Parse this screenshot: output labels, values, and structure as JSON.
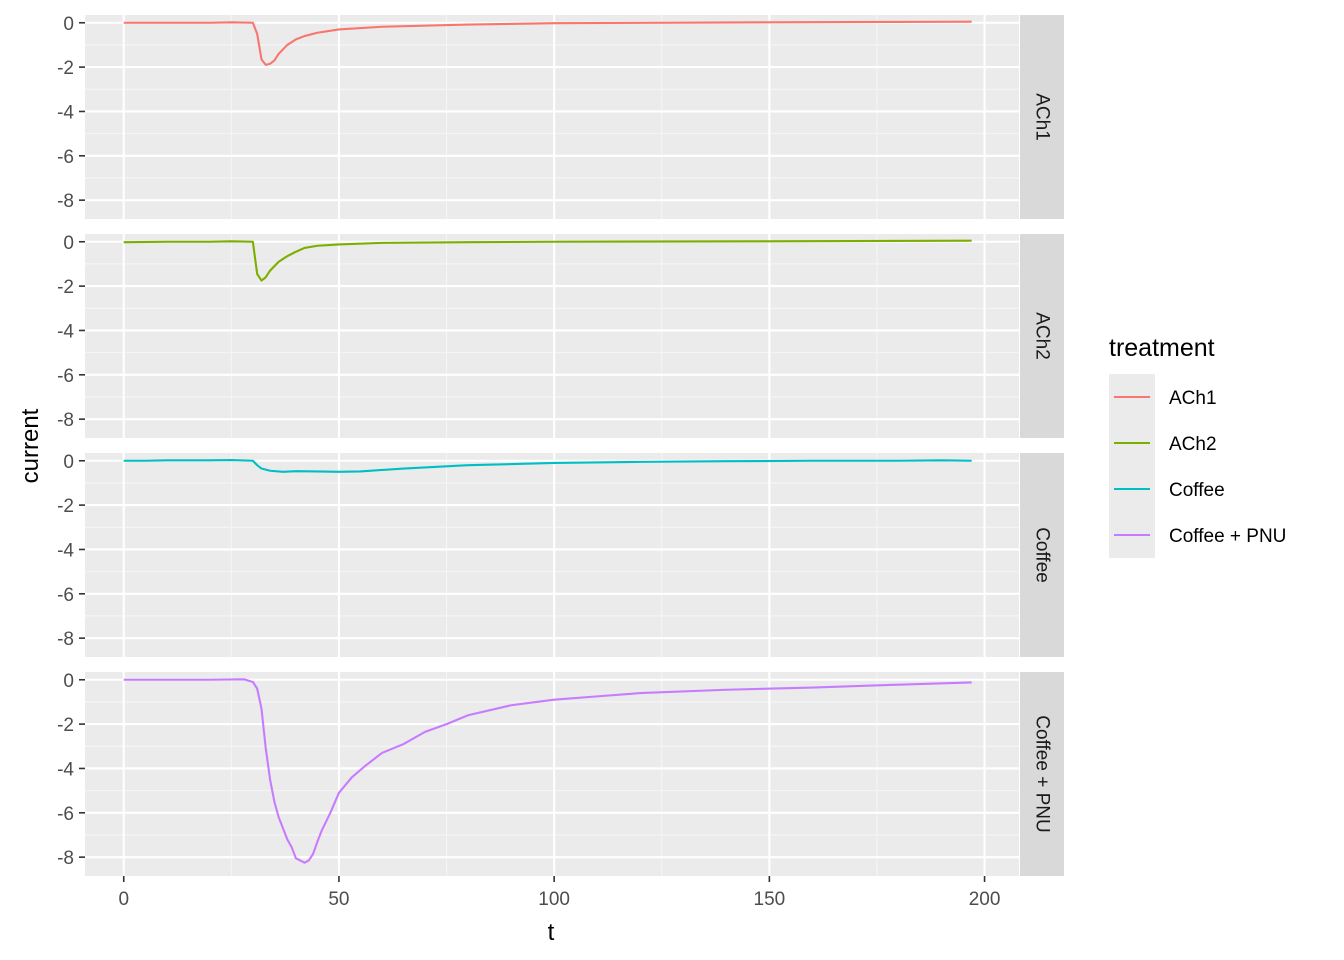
{
  "chart_data": {
    "type": "line",
    "xlabel": "t",
    "ylabel": "current",
    "xlim": [
      -9,
      208
    ],
    "ylim": [
      -8.85,
      0.35
    ],
    "x_ticks": [
      0,
      50,
      100,
      150,
      200
    ],
    "x_tick_labels": [
      "0",
      "50",
      "100",
      "150",
      "200"
    ],
    "y_ticks": [
      0,
      -2,
      -4,
      -6,
      -8
    ],
    "y_tick_labels": [
      "0",
      "-2",
      "-4",
      "-6",
      "-8"
    ],
    "grid": true,
    "legend": {
      "title": "treatment",
      "position": "right",
      "entries": [
        "ACh1",
        "ACh2",
        "Coffee",
        "Coffee + PNU"
      ]
    },
    "facets": [
      "ACh1",
      "ACh2",
      "Coffee",
      "Coffee + PNU"
    ],
    "series": [
      {
        "name": "ACh1",
        "color": "#F8766D",
        "x": [
          0,
          10,
          20,
          25,
          30,
          31,
          32,
          33,
          34,
          35,
          36,
          38,
          40,
          42,
          45,
          50,
          60,
          80,
          100,
          150,
          197
        ],
        "y": [
          0,
          0,
          0,
          0.02,
          0,
          -0.5,
          -1.65,
          -1.9,
          -1.85,
          -1.7,
          -1.4,
          -1.0,
          -0.75,
          -0.6,
          -0.45,
          -0.3,
          -0.18,
          -0.08,
          -0.02,
          0.02,
          0.05
        ]
      },
      {
        "name": "ACh2",
        "color": "#7CAE00",
        "x": [
          0,
          10,
          20,
          25,
          30,
          31,
          32,
          33,
          34,
          36,
          38,
          40,
          42,
          45,
          50,
          60,
          80,
          100,
          150,
          197
        ],
        "y": [
          -0.02,
          0,
          0,
          0.02,
          0,
          -1.45,
          -1.75,
          -1.6,
          -1.3,
          -0.9,
          -0.65,
          -0.45,
          -0.28,
          -0.18,
          -0.12,
          -0.05,
          -0.02,
          0,
          0.02,
          0.05
        ]
      },
      {
        "name": "Coffee",
        "color": "#00BFC4",
        "x": [
          0,
          5,
          10,
          20,
          25,
          30,
          31,
          32,
          34,
          37,
          40,
          45,
          50,
          55,
          65,
          80,
          100,
          120,
          140,
          160,
          180,
          190,
          197
        ],
        "y": [
          0,
          0,
          0.02,
          0.02,
          0.03,
          0,
          -0.2,
          -0.35,
          -0.45,
          -0.5,
          -0.47,
          -0.48,
          -0.5,
          -0.48,
          -0.35,
          -0.2,
          -0.1,
          -0.05,
          -0.02,
          0,
          0,
          0.02,
          0
        ]
      },
      {
        "name": "Coffee + PNU",
        "color": "#C77CFF",
        "x": [
          0,
          10,
          20,
          28,
          30,
          31,
          32,
          33,
          34,
          35,
          36,
          38,
          39,
          40,
          41,
          42,
          43,
          44,
          45,
          46,
          48,
          50,
          53,
          56,
          60,
          65,
          70,
          75,
          80,
          90,
          100,
          110,
          120,
          140,
          160,
          180,
          197
        ],
        "y": [
          0,
          0,
          0,
          0.02,
          -0.1,
          -0.4,
          -1.3,
          -3.1,
          -4.5,
          -5.5,
          -6.2,
          -7.2,
          -7.55,
          -8.05,
          -8.15,
          -8.25,
          -8.15,
          -7.85,
          -7.3,
          -6.8,
          -6.0,
          -5.1,
          -4.4,
          -3.9,
          -3.3,
          -2.9,
          -2.35,
          -2.0,
          -1.6,
          -1.15,
          -0.9,
          -0.75,
          -0.6,
          -0.45,
          -0.35,
          -0.22,
          -0.12
        ]
      }
    ]
  }
}
